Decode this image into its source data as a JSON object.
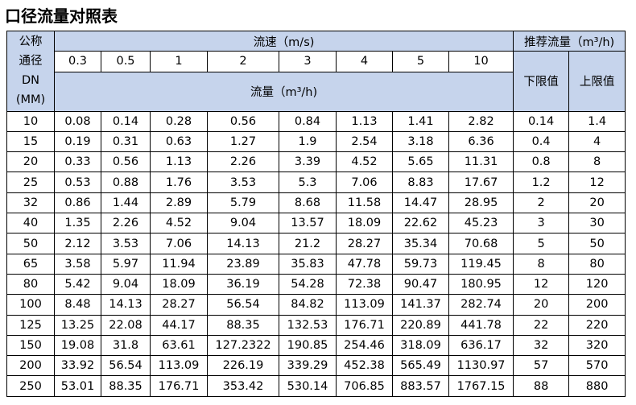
{
  "title": "口径流量对照表",
  "header": {
    "corner": [
      "公称",
      "通径",
      "DN",
      "(MM)"
    ],
    "speed_title": "流速（m/s)",
    "recommend_title": "推荐流量（m³/h)",
    "speeds": [
      "0.3",
      "0.5",
      "1",
      "2",
      "3",
      "4",
      "5",
      "10"
    ],
    "flow_title": "流量（m³/h)",
    "lower": "下限值",
    "upper": "上限值"
  },
  "rows": [
    [
      "10",
      "0.08",
      "0.14",
      "0.28",
      "0.56",
      "0.84",
      "1.13",
      "1.41",
      "2.82",
      "0.14",
      "1.4"
    ],
    [
      "15",
      "0.19",
      "0.31",
      "0.63",
      "1.27",
      "1.9",
      "2.54",
      "3.18",
      "6.36",
      "0.4",
      "4"
    ],
    [
      "20",
      "0.33",
      "0.56",
      "1.13",
      "2.26",
      "3.39",
      "4.52",
      "5.65",
      "11.31",
      "0.8",
      "8"
    ],
    [
      "25",
      "0.53",
      "0.88",
      "1.76",
      "3.53",
      "5.3",
      "7.06",
      "8.83",
      "17.67",
      "1.2",
      "12"
    ],
    [
      "32",
      "0.86",
      "1.44",
      "2.89",
      "5.79",
      "8.68",
      "11.58",
      "14.47",
      "28.95",
      "2",
      "20"
    ],
    [
      "40",
      "1.35",
      "2.26",
      "4.52",
      "9.04",
      "13.57",
      "18.09",
      "22.62",
      "45.23",
      "3",
      "30"
    ],
    [
      "50",
      "2.12",
      "3.53",
      "7.06",
      "14.13",
      "21.2",
      "28.27",
      "35.34",
      "70.68",
      "5",
      "50"
    ],
    [
      "65",
      "3.58",
      "5.97",
      "11.94",
      "23.89",
      "35.83",
      "47.78",
      "59.73",
      "119.45",
      "8",
      "80"
    ],
    [
      "80",
      "5.42",
      "9.04",
      "18.09",
      "36.19",
      "54.28",
      "72.38",
      "90.47",
      "180.95",
      "12",
      "120"
    ],
    [
      "100",
      "8.48",
      "14.13",
      "28.27",
      "56.54",
      "84.82",
      "113.09",
      "141.37",
      "282.74",
      "20",
      "200"
    ],
    [
      "125",
      "13.25",
      "22.08",
      "44.17",
      "88.35",
      "132.53",
      "176.71",
      "220.89",
      "441.78",
      "22",
      "220"
    ],
    [
      "150",
      "19.08",
      "31.8",
      "63.61",
      "127.2322",
      "190.85",
      "254.46",
      "318.09",
      "636.17",
      "32",
      "320"
    ],
    [
      "200",
      "33.92",
      "56.54",
      "113.09",
      "226.19",
      "339.29",
      "452.38",
      "565.49",
      "1130.97",
      "57",
      "570"
    ],
    [
      "250",
      "53.01",
      "88.35",
      "176.71",
      "353.42",
      "530.14",
      "706.85",
      "883.57",
      "1767.15",
      "88",
      "880"
    ]
  ]
}
